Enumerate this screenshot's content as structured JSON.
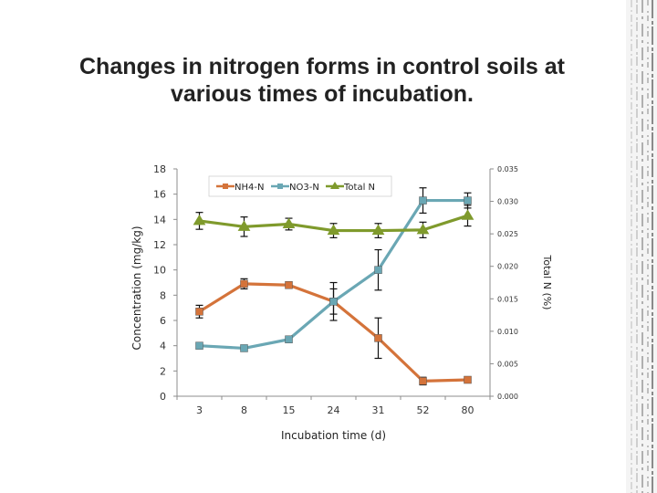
{
  "slide": {
    "title_line1": "Changes in nitrogen forms in control soils at",
    "title_line2": "various times of incubation."
  },
  "chart_data": {
    "type": "line",
    "categories": [
      "3",
      "8",
      "15",
      "24",
      "31",
      "52",
      "80"
    ],
    "xlabel": "Incubation time (d)",
    "ylabel": "Concentration (mg/kg)",
    "y2label": "Total N (%)",
    "ylim": [
      0,
      18
    ],
    "y_ticks": [
      "0",
      "2",
      "4",
      "6",
      "8",
      "10",
      "12",
      "14",
      "16",
      "18"
    ],
    "y2lim": [
      0,
      0.035
    ],
    "y2_ticks": [
      "0.000",
      "0.005",
      "0.010",
      "0.015",
      "0.020",
      "0.025",
      "0.030",
      "0.035"
    ],
    "legend_position": "top-center",
    "grid": false,
    "series": [
      {
        "name": "NH4-N",
        "axis": "left",
        "color": "#d4733a",
        "marker": "square",
        "values": [
          6.7,
          8.9,
          8.8,
          7.5,
          4.6,
          1.2,
          1.3
        ],
        "errors": [
          0.5,
          0.4,
          0.2,
          1.5,
          1.6,
          0.3,
          0.2
        ]
      },
      {
        "name": "NO3-N",
        "axis": "left",
        "color": "#6aa7b4",
        "marker": "square",
        "values": [
          4.0,
          3.8,
          4.5,
          7.5,
          10.0,
          15.5,
          15.5
        ],
        "errors": [
          0.0,
          0.0,
          0.0,
          1.0,
          1.6,
          1.0,
          0.6
        ]
      },
      {
        "name": "Total N",
        "axis": "right",
        "color": "#7f9a2c",
        "marker": "triangle",
        "values": [
          0.027,
          0.0261,
          0.0265,
          0.0255,
          0.0255,
          0.0256,
          0.0278
        ],
        "errors": [
          0.0013,
          0.0015,
          0.0009,
          0.0011,
          0.0011,
          0.0012,
          0.0016
        ]
      }
    ]
  }
}
